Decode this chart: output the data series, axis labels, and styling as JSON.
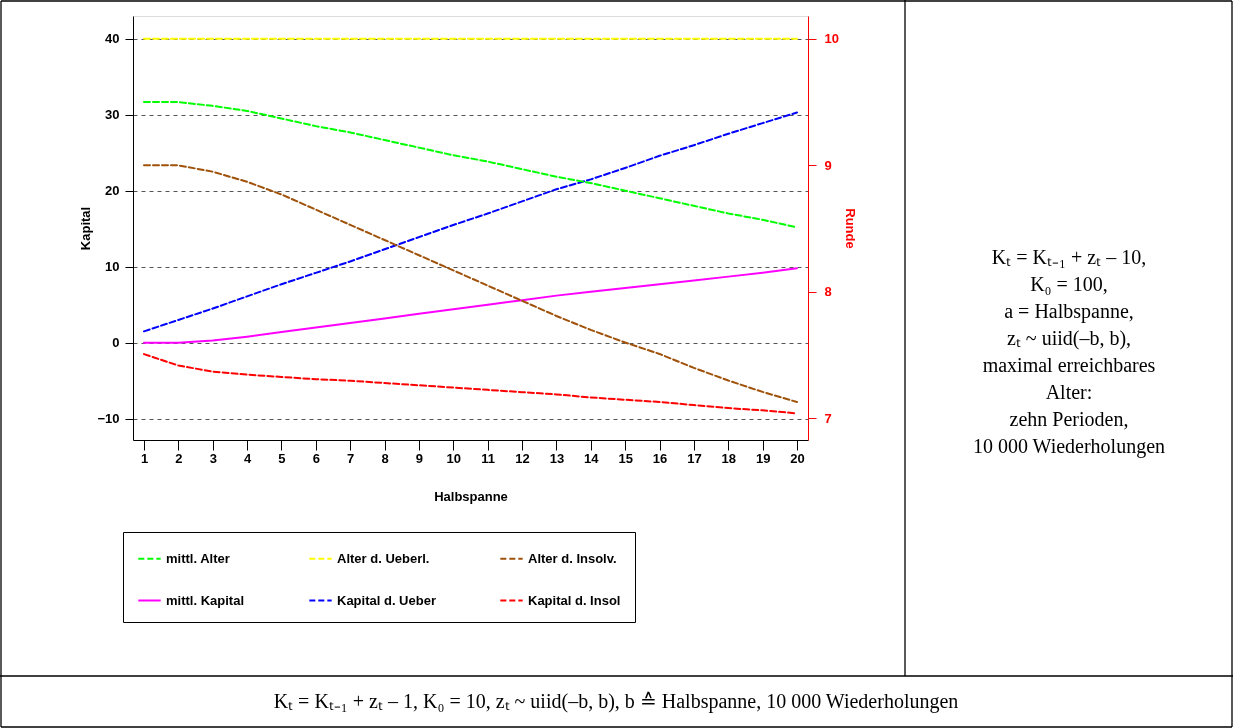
{
  "chart_data": {
    "type": "line",
    "xlabel": "Halbspanne",
    "ylabel": "Kapital",
    "y2label": "Runde",
    "x": [
      1,
      2,
      3,
      4,
      5,
      6,
      7,
      8,
      9,
      10,
      11,
      12,
      13,
      14,
      15,
      16,
      17,
      18,
      19,
      20
    ],
    "xlim": [
      0.68,
      20.32
    ],
    "xticks": [
      1,
      2,
      3,
      4,
      5,
      6,
      7,
      8,
      9,
      10,
      11,
      12,
      13,
      14,
      15,
      16,
      17,
      18,
      19,
      20
    ],
    "ylim": [
      -12.8,
      43
    ],
    "yticks": [
      -10,
      0,
      10,
      20,
      30,
      40
    ],
    "y2lim": [
      6.83,
      10.18
    ],
    "y2ticks": [
      7,
      8,
      9,
      10
    ],
    "grid": "y",
    "legend": "bottom",
    "series": [
      {
        "name": "mittl. Alter",
        "color": "#00ff00",
        "axis": "y2",
        "line_style": "dashed",
        "values": [
          9.5,
          9.5,
          9.47,
          9.43,
          9.37,
          9.31,
          9.26,
          9.2,
          9.14,
          9.08,
          9.03,
          8.97,
          8.91,
          8.86,
          8.8,
          8.74,
          8.68,
          8.62,
          8.57,
          8.51
        ]
      },
      {
        "name": "Alter d. Ueberl.",
        "color": "#ffff00",
        "axis": "y2",
        "line_style": "dashed",
        "values": [
          10,
          10,
          10,
          10,
          10,
          10,
          10,
          10,
          10,
          10,
          10,
          10,
          10,
          10,
          10,
          10,
          10,
          10,
          10,
          10
        ]
      },
      {
        "name": "Alter d. Insolv.",
        "color": "#a0520a",
        "axis": "y2",
        "line_style": "dashed",
        "values": [
          9.0,
          9.0,
          8.95,
          8.87,
          8.77,
          8.65,
          8.53,
          8.41,
          8.29,
          8.17,
          8.05,
          7.93,
          7.81,
          7.7,
          7.6,
          7.51,
          7.4,
          7.3,
          7.21,
          7.13
        ]
      },
      {
        "name": "mittl. Kapital",
        "color": "#ff00ff",
        "line_style": "solid",
        "values": [
          0,
          0,
          0.3,
          0.8,
          1.4,
          2.0,
          2.6,
          3.2,
          3.8,
          4.4,
          5.0,
          5.6,
          6.2,
          6.7,
          7.2,
          7.7,
          8.2,
          8.7,
          9.2,
          9.8
        ]
      },
      {
        "name": "Kapital d. Ueber",
        "color": "#0000ff",
        "line_style": "dashed",
        "values": [
          1.5,
          3.0,
          4.5,
          6.1,
          7.7,
          9.2,
          10.7,
          12.3,
          13.9,
          15.5,
          17.0,
          18.6,
          20.2,
          21.5,
          23.0,
          24.6,
          26.0,
          27.5,
          28.9,
          30.3
        ]
      },
      {
        "name": "Kapital d. Insol",
        "color": "#ff0000",
        "line_style": "dashed",
        "values": [
          -1.5,
          -3.0,
          -3.8,
          -4.2,
          -4.5,
          -4.8,
          -5.0,
          -5.3,
          -5.6,
          -5.9,
          -6.2,
          -6.5,
          -6.8,
          -7.2,
          -7.5,
          -7.8,
          -8.2,
          -8.6,
          -8.9,
          -9.3
        ]
      }
    ],
    "annotations": [
      "Kₜ = Kₜ₋₁ + zₜ – 10,",
      "K₀ = 100,",
      "a = Halbspanne,",
      "zₜ ~ uiid(–b, b),",
      "maximal erreichbares",
      "Alter:",
      "zehn Perioden,",
      "10 000 Wiederholungen",
      "Kₜ = Kₜ₋₁ + zₜ – 1, K₀ = 10,  zₜ ~ uiid(–b, b), b ≙ Halbspanne, 10 000 Wiederholungen"
    ]
  }
}
